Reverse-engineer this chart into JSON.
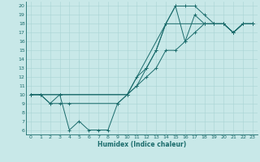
{
  "xlabel": "Humidex (Indice chaleur)",
  "background_color": "#c8e8e8",
  "line_color": "#1a6b6b",
  "grid_color": "#a8d4d4",
  "xlim": [
    -0.5,
    23.5
  ],
  "ylim": [
    5.5,
    20.5
  ],
  "xticks": [
    0,
    1,
    2,
    3,
    4,
    5,
    6,
    7,
    8,
    9,
    10,
    11,
    12,
    13,
    14,
    15,
    16,
    17,
    18,
    19,
    20,
    21,
    22,
    23
  ],
  "yticks": [
    6,
    7,
    8,
    9,
    10,
    11,
    12,
    13,
    14,
    15,
    16,
    17,
    18,
    19,
    20
  ],
  "lines": [
    {
      "x": [
        0,
        1,
        2,
        3,
        4,
        5,
        6,
        7,
        8,
        9,
        10,
        11,
        12,
        13,
        14,
        15,
        16,
        17,
        18,
        19,
        20,
        21,
        22,
        23
      ],
      "y": [
        10,
        10,
        9,
        10,
        6,
        7,
        6,
        6,
        6,
        9,
        10,
        11,
        13,
        15,
        18,
        20,
        20,
        20,
        19,
        18,
        18,
        17,
        18,
        18
      ]
    },
    {
      "x": [
        0,
        1,
        2,
        3,
        4,
        9,
        10,
        11,
        12,
        13,
        14,
        15,
        16,
        17,
        18,
        19,
        20,
        21,
        22,
        23
      ],
      "y": [
        10,
        10,
        9,
        9,
        9,
        9,
        10,
        12,
        13,
        15,
        18,
        20,
        16,
        19,
        18,
        18,
        18,
        17,
        18,
        18
      ]
    },
    {
      "x": [
        0,
        3,
        10,
        11,
        12,
        13,
        14,
        15,
        16,
        17,
        18,
        19,
        20,
        21,
        22,
        23
      ],
      "y": [
        10,
        10,
        10,
        11,
        12,
        13,
        15,
        15,
        16,
        17,
        18,
        18,
        18,
        17,
        18,
        18
      ]
    },
    {
      "x": [
        0,
        3,
        10,
        14,
        18,
        20,
        21,
        22,
        23
      ],
      "y": [
        10,
        10,
        10,
        18,
        18,
        18,
        17,
        18,
        18
      ]
    }
  ]
}
